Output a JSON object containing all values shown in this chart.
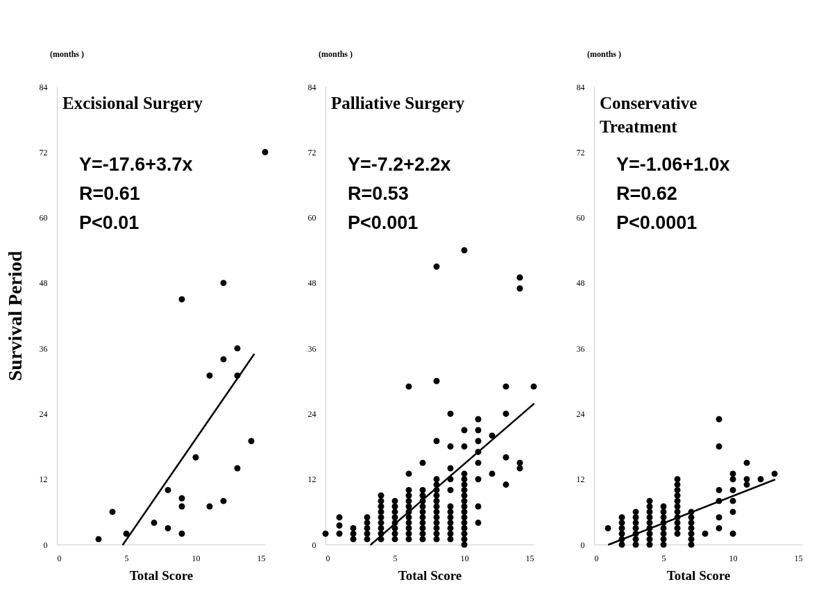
{
  "chart_data": [
    {
      "type": "scatter",
      "title": "Excisional Surgery",
      "xlabel": "Total Score",
      "ylabel": "Survival Period",
      "xlim": [
        0,
        15
      ],
      "xticks": [
        0,
        5,
        10,
        15
      ],
      "ylim": [
        0,
        84
      ],
      "yticks": [
        0,
        12,
        24,
        36,
        48,
        60,
        72,
        84
      ],
      "annotations": [
        "(months )",
        "Y=-17.6+3.7x",
        "R=0.61",
        "P<0.01"
      ],
      "series": [
        {
          "color": "#000000",
          "marker": "circle",
          "x": [
            3,
            4,
            5,
            7,
            8,
            8,
            9,
            9,
            9,
            9,
            10,
            11,
            11,
            12,
            12,
            12,
            13,
            13,
            13,
            14,
            15
          ],
          "values": [
            1,
            6,
            2,
            4,
            3,
            10,
            2,
            7,
            8.5,
            45,
            16,
            7,
            31,
            8,
            34,
            48,
            14,
            31,
            36,
            19,
            72
          ]
        },
        {
          "type": "line",
          "color": "#000000",
          "line_style": "solid",
          "x": [
            4.76,
            14.2
          ],
          "values": [
            0,
            34.9
          ]
        }
      ]
    },
    {
      "type": "scatter",
      "title": "Palliative Surgery",
      "xlabel": "Total Score",
      "xlim": [
        0,
        15
      ],
      "xticks": [
        0,
        5,
        10,
        15
      ],
      "ylim": [
        0,
        84
      ],
      "yticks": [
        0,
        12,
        24,
        36,
        48,
        60,
        72,
        84
      ],
      "annotations": [
        "(months )",
        "Y=-7.2+2.2x",
        "R=0.53",
        "P<0.001"
      ],
      "series": [
        {
          "color": "#000000",
          "marker": "circle",
          "x": [
            0,
            1,
            1,
            1,
            2,
            2,
            2,
            3,
            3,
            3,
            3,
            3,
            4,
            4,
            4,
            4,
            4,
            4,
            4,
            4,
            4,
            5,
            5,
            5,
            5,
            5,
            5,
            5,
            5,
            6,
            6,
            6,
            6,
            6,
            6,
            6,
            6,
            6,
            6,
            6,
            6,
            7,
            7,
            7,
            7,
            7,
            7,
            7,
            7,
            7,
            7,
            7,
            8,
            8,
            8,
            8,
            8,
            8,
            8,
            8,
            8,
            8,
            8,
            8,
            8,
            8,
            8,
            9,
            9,
            9,
            9,
            9,
            9,
            9,
            9,
            9,
            9,
            9,
            9,
            10,
            10,
            10,
            10,
            10,
            10,
            10,
            10,
            10,
            10,
            10,
            10,
            10,
            10,
            10,
            10,
            10,
            11,
            11,
            11,
            11,
            11,
            11,
            11,
            11,
            12,
            12,
            13,
            13,
            13,
            13,
            14,
            14,
            14,
            14,
            15
          ],
          "values": [
            2,
            2,
            3.5,
            5,
            1,
            2,
            3,
            1,
            2,
            3,
            4,
            5,
            1,
            2,
            3,
            4,
            5,
            6,
            7,
            8,
            9,
            1,
            2,
            3,
            4,
            5,
            6,
            7,
            8,
            1,
            2,
            3,
            4,
            5,
            6,
            7,
            8,
            9,
            10,
            13,
            29,
            1,
            2,
            3,
            4,
            5,
            6,
            7,
            8,
            9,
            10,
            15,
            1,
            2,
            3,
            4,
            5,
            6,
            7,
            8,
            9,
            10,
            11,
            12,
            19,
            30,
            51,
            1,
            2,
            3,
            4,
            5,
            6,
            7,
            10,
            12,
            14,
            18,
            24,
            0,
            1,
            2,
            3,
            4,
            5,
            6,
            7,
            8,
            9,
            10,
            11,
            12,
            13,
            18,
            21,
            54,
            4,
            7,
            12,
            15,
            17,
            19,
            21,
            23,
            13,
            20,
            11,
            16,
            24,
            29,
            14,
            15,
            47,
            49,
            29
          ]
        },
        {
          "type": "line",
          "color": "#000000",
          "line_style": "solid",
          "x": [
            3.27,
            15
          ],
          "values": [
            0,
            25.8
          ]
        }
      ]
    },
    {
      "type": "scatter",
      "title": "Conservative\nTreatment",
      "xlabel": "Total Score",
      "xlim": [
        0,
        15
      ],
      "xticks": [
        0,
        5,
        10,
        15
      ],
      "ylim": [
        0,
        84
      ],
      "yticks": [
        0,
        12,
        24,
        36,
        48,
        60,
        72,
        84
      ],
      "annotations": [
        "(months )",
        "Y=-1.06+1.0x",
        "R=0.62",
        "P<0.0001"
      ],
      "series": [
        {
          "color": "#000000",
          "marker": "circle",
          "x": [
            1,
            2,
            2,
            2,
            2,
            2,
            2,
            3,
            3,
            3,
            3,
            3,
            3,
            3,
            4,
            4,
            4,
            4,
            4,
            4,
            4,
            4,
            4,
            5,
            5,
            5,
            5,
            5,
            5,
            5,
            5,
            6,
            6,
            6,
            6,
            6,
            6,
            6,
            6,
            6,
            6,
            6,
            7,
            7,
            7,
            7,
            7,
            7,
            7,
            8,
            9,
            9,
            9,
            9,
            9,
            9,
            10,
            10,
            10,
            10,
            10,
            10,
            11,
            11,
            11,
            12,
            13
          ],
          "values": [
            3,
            0,
            1,
            2,
            3,
            4,
            5,
            0,
            1,
            2,
            3,
            4,
            5,
            6,
            0,
            1,
            2,
            3,
            4,
            5,
            6,
            7,
            8,
            0,
            1,
            2,
            3,
            4,
            5,
            6,
            7,
            2,
            3,
            4,
            5,
            6,
            7,
            8,
            9,
            10,
            11,
            12,
            0,
            1,
            2,
            3,
            4,
            5,
            6,
            2,
            3,
            5,
            8,
            10,
            18,
            23,
            2,
            6,
            8,
            10,
            12,
            13,
            11,
            12,
            15,
            12,
            13
          ]
        },
        {
          "type": "line",
          "color": "#000000",
          "line_style": "solid",
          "x": [
            1.06,
            13
          ],
          "values": [
            0,
            11.9
          ]
        }
      ]
    }
  ]
}
